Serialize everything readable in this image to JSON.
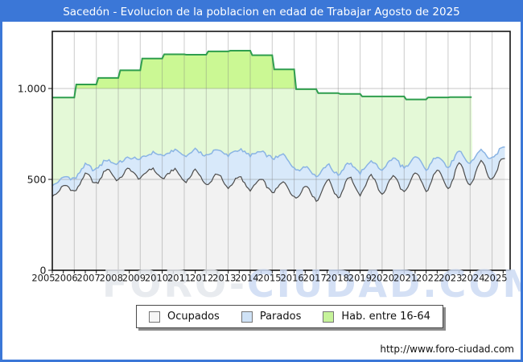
{
  "window": {
    "title": "Sacedón - Evolucion de la poblacion en edad de Trabajar Agosto de 2025"
  },
  "footer": {
    "url": "http://www.foro-ciudad.com"
  },
  "watermark": {
    "part1": "FORO-",
    "part2": "CIUDAD.COM"
  },
  "legend": {
    "items": [
      {
        "label": "Ocupados",
        "color": "#f6f6f6"
      },
      {
        "label": "Parados",
        "color": "#cfe2f6"
      },
      {
        "label": "Hab. entre 16-64",
        "color": "#c6f39a"
      }
    ]
  },
  "colors": {
    "frame_blue": "#3b77d7",
    "title_text": "#ffffff",
    "plot_border": "#141414",
    "grid": "#7a7a7a",
    "hab_fill_above_1000": "#cbf894",
    "hab_fill_below_1000": "#e4f9d7",
    "hab_line": "#2f9e4e",
    "parados_fill": "#d8e9fa",
    "parados_line": "#8ab4e4",
    "ocupados_fill": "#f2f2f2",
    "ocupados_line": "#4d4d4d",
    "watermark_gray": "#e4e7ec",
    "watermark_blue": "#ccdaf3",
    "axis_text": "#1a1a1a"
  },
  "chart_data": {
    "type": "area",
    "title": "Sacedón - Evolucion de la poblacion en edad de Trabajar Agosto de 2025",
    "x_labels": [
      "2005",
      "2006",
      "2007",
      "2008",
      "2009",
      "2010",
      "2011",
      "2012",
      "2013",
      "2014",
      "2015",
      "2016",
      "2017",
      "2018",
      "2019",
      "2020",
      "2021",
      "2022",
      "2023",
      "2024",
      "2025"
    ],
    "x_range": [
      2005,
      2025.67
    ],
    "ylim": [
      0,
      1315
    ],
    "grid": "on",
    "legend_position": "bottom",
    "y_ticks": [
      {
        "value": 0,
        "label": "0"
      },
      {
        "value": 500,
        "label": "500"
      },
      {
        "value": 1000,
        "label": "1.000"
      }
    ],
    "series": [
      {
        "name": "Hab. entre 16-64",
        "type": "step-area",
        "years": [
          2005,
          2006,
          2007,
          2008,
          2009,
          2010,
          2011,
          2012,
          2013,
          2014,
          2015,
          2016,
          2017,
          2018,
          2019,
          2020,
          2021,
          2022,
          2023
        ],
        "values": [
          950,
          1022,
          1058,
          1100,
          1165,
          1188,
          1186,
          1204,
          1208,
          1183,
          1105,
          996,
          975,
          970,
          956,
          956,
          940,
          951,
          952
        ],
        "end_x": 2024.07
      },
      {
        "name": "Parados",
        "type": "monthly-area",
        "stacked_on": "Ocupados",
        "years": [
          2005,
          2006,
          2007,
          2008,
          2009,
          2010,
          2011,
          2012,
          2013,
          2014,
          2015,
          2016,
          2017,
          2018,
          2019,
          2020,
          2021,
          2022,
          2023,
          2024,
          2025
        ],
        "annual_avg": [
          55,
          62,
          68,
          78,
          100,
          118,
          130,
          152,
          168,
          172,
          168,
          125,
          105,
          100,
          98,
          122,
          105,
          95,
          92,
          88,
          88
        ],
        "seasonal_amp": [
          12,
          12,
          14,
          14,
          16,
          16,
          18,
          18,
          18,
          18,
          18,
          20,
          20,
          20,
          22,
          24,
          22,
          22,
          24,
          26,
          26
        ]
      },
      {
        "name": "Ocupados",
        "type": "monthly-area",
        "years": [
          2005,
          2006,
          2007,
          2008,
          2009,
          2010,
          2011,
          2012,
          2013,
          2014,
          2015,
          2016,
          2017,
          2018,
          2019,
          2020,
          2021,
          2022,
          2023,
          2024,
          2025
        ],
        "annual_avg": [
          435,
          495,
          525,
          530,
          535,
          528,
          515,
          495,
          482,
          468,
          452,
          420,
          445,
          462,
          472,
          470,
          485,
          500,
          522,
          540,
          565
        ],
        "seasonal_amp": [
          28,
          28,
          28,
          28,
          30,
          30,
          32,
          32,
          32,
          34,
          36,
          42,
          46,
          48,
          52,
          52,
          52,
          54,
          56,
          58,
          58
        ]
      }
    ]
  }
}
